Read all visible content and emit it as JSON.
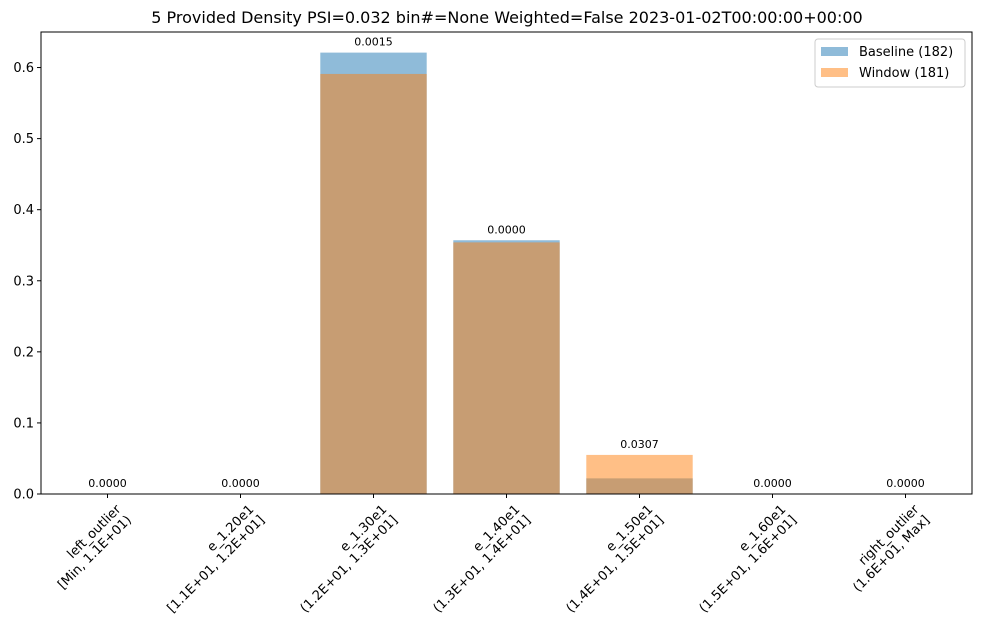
{
  "chart_data": {
    "type": "bar",
    "title": "5 Provided Density PSI=0.032 bin#=None Weighted=False 2023-01-02T00:00:00+00:00",
    "xlabel": "",
    "ylabel": "",
    "ylim": [
      0,
      0.65
    ],
    "yticks": [
      "0.0",
      "0.1",
      "0.2",
      "0.3",
      "0.4",
      "0.5",
      "0.6"
    ],
    "grid": false,
    "legend_position": "top-right",
    "categories": [
      [
        "left_outlier",
        "[Min, 1.1E+01)"
      ],
      [
        "e_1.20e1",
        "[1.1E+01, 1.2E+01]"
      ],
      [
        "e_1.30e1",
        "(1.2E+01, 1.3E+01]"
      ],
      [
        "e_1.40e1",
        "(1.3E+01, 1.4E+01]"
      ],
      [
        "e_1.50e1",
        "(1.4E+01, 1.5E+01]"
      ],
      [
        "e_1.60e1",
        "(1.5E+01, 1.6E+01]"
      ],
      [
        "right_outlier",
        "(1.6E+01, Max]"
      ]
    ],
    "series": [
      {
        "name": "Baseline (182)",
        "color": "#1f77b4",
        "opacity": 0.5,
        "values": [
          0,
          0,
          0.621,
          0.357,
          0.022,
          0,
          0
        ]
      },
      {
        "name": "Window (181)",
        "color": "#ff7f0e",
        "opacity": 0.5,
        "values": [
          0,
          0,
          0.591,
          0.354,
          0.055,
          0,
          0
        ]
      }
    ],
    "bar_labels": [
      "0.0000",
      "0.0000",
      "0.0015",
      "0.0000",
      "0.0307",
      "0.0000",
      "0.0000"
    ]
  }
}
